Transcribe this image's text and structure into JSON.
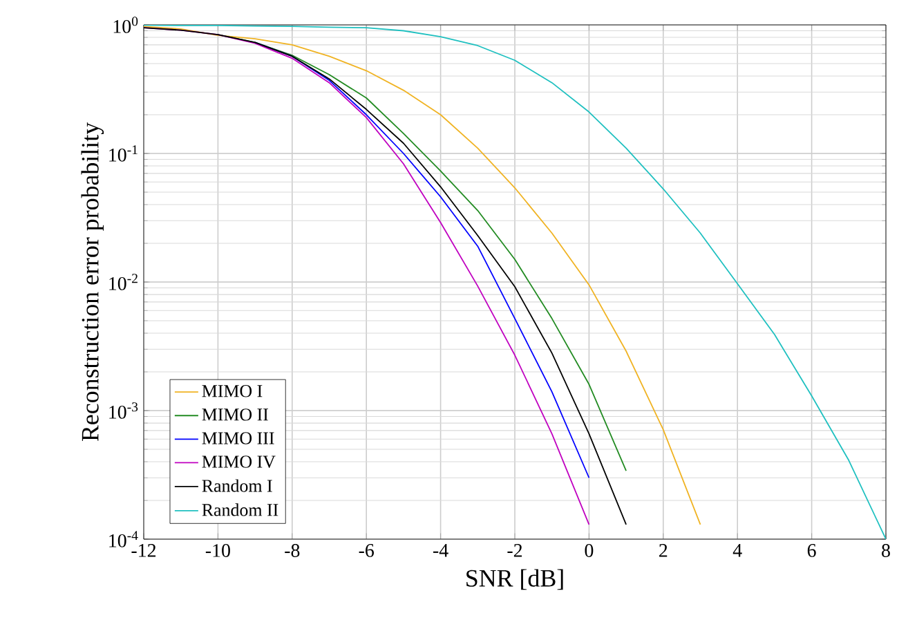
{
  "chart_data": {
    "type": "line",
    "xlabel": "SNR [dB]",
    "ylabel": "Reconstruction error probability",
    "x": [
      -12,
      -11,
      -10,
      -9,
      -8,
      -7,
      -6,
      -5,
      -4,
      -3,
      -2,
      -1,
      0,
      1,
      2,
      3,
      4,
      5,
      6,
      7,
      8
    ],
    "series": [
      {
        "name": "MIMO I",
        "color": "#f0b323",
        "values": [
          0.97,
          0.93,
          0.83,
          0.78,
          0.7,
          0.57,
          0.44,
          0.31,
          0.2,
          0.11,
          0.054,
          0.024,
          0.0095,
          0.0029,
          0.00071,
          0.00013,
          null,
          null,
          null,
          null,
          null
        ]
      },
      {
        "name": "MIMO II",
        "color": "#228b22",
        "values": [
          null,
          null,
          0.84,
          0.73,
          0.58,
          0.41,
          0.27,
          0.143,
          0.073,
          0.036,
          0.015,
          0.0052,
          0.0016,
          0.00034,
          null,
          null,
          null,
          null,
          null,
          null,
          null
        ]
      },
      {
        "name": "MIMO III",
        "color": "#0000ff",
        "values": [
          null,
          null,
          null,
          0.73,
          0.57,
          0.37,
          0.2,
          0.1,
          0.046,
          0.019,
          0.0052,
          0.0014,
          0.0003,
          null,
          null,
          null,
          null,
          null,
          null,
          null,
          null
        ]
      },
      {
        "name": "MIMO IV",
        "color": "#c000c0",
        "values": [
          0.95,
          0.91,
          0.84,
          0.72,
          0.55,
          0.355,
          0.19,
          0.083,
          0.029,
          0.0093,
          0.0027,
          0.00066,
          0.00013,
          null,
          null,
          null,
          null,
          null,
          null,
          null,
          null
        ]
      },
      {
        "name": "Random I",
        "color": "#000000",
        "values": [
          0.95,
          0.91,
          0.84,
          0.73,
          0.57,
          0.38,
          0.22,
          0.12,
          0.055,
          0.023,
          0.0092,
          0.0028,
          0.00066,
          0.00013,
          null,
          null,
          null,
          null,
          null,
          null,
          null
        ]
      },
      {
        "name": "Random II",
        "color": "#1fc0c0",
        "values": [
          0.995,
          0.99,
          0.99,
          0.98,
          0.975,
          0.96,
          0.95,
          0.9,
          0.81,
          0.69,
          0.53,
          0.355,
          0.21,
          0.11,
          0.053,
          0.024,
          0.0097,
          0.0039,
          0.0013,
          0.00041,
          0.0001
        ]
      }
    ],
    "xlim": [
      -12,
      8
    ],
    "ylim": [
      0.0001,
      1
    ],
    "xticks": [
      -12,
      -10,
      -8,
      -6,
      -4,
      -2,
      0,
      2,
      4,
      6,
      8
    ],
    "yticks": [
      {
        "value": 0.0001,
        "label": "10$^{-4}$"
      },
      {
        "value": 0.001,
        "label": "10$^{-3}$"
      },
      {
        "value": 0.01,
        "label": "10$^{-2}$"
      },
      {
        "value": 0.1,
        "label": "10$^{-1}$"
      },
      {
        "value": 1,
        "label": "10$^{0}$"
      }
    ],
    "log": "y",
    "grid": true,
    "legend": "bottom left",
    "marker": "none",
    "line_style": "solid"
  }
}
